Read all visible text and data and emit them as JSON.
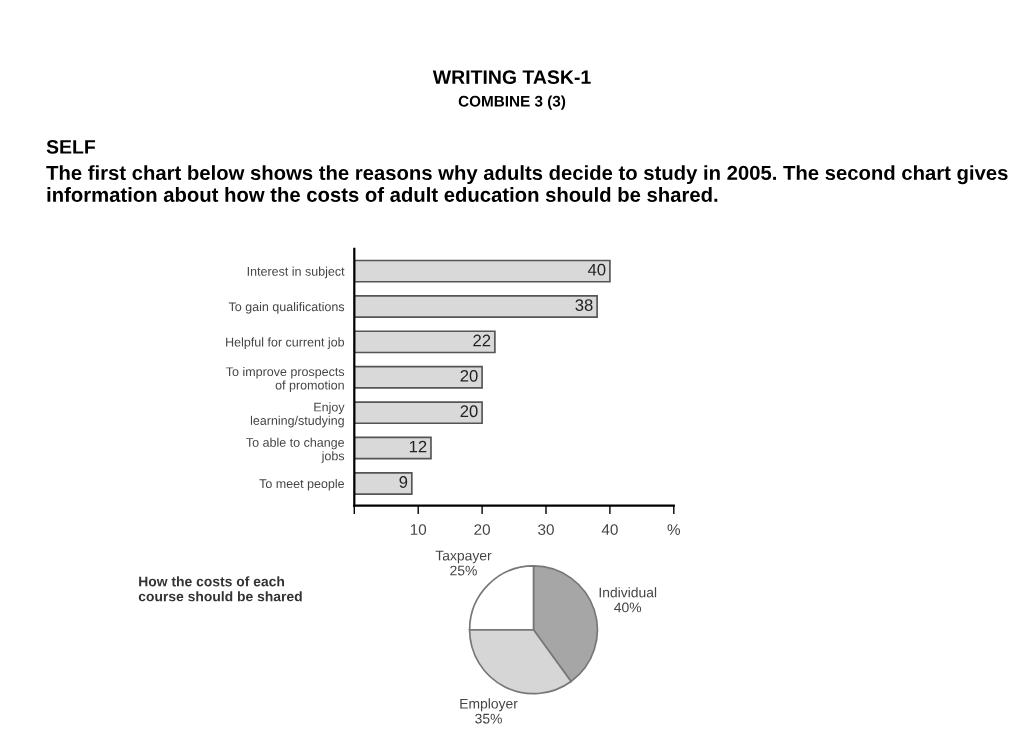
{
  "chart_data": [
    {
      "type": "bar",
      "orientation": "horizontal",
      "annotations": [
        "WRITING TASK-1",
        "COMBINE 3 (3)",
        "SELF",
        "The first chart below shows the reasons why adults decide to study in 2005. The second chart gives information about how the costs of adult education should be shared."
      ],
      "categories": [
        "Interest in subject",
        "To gain qualifications",
        "Helpful for current job",
        "To improve prospects\nof promotion",
        "Enjoy\nlearning/studying",
        "To able to change\njobs",
        "To meet people"
      ],
      "values": [
        40,
        38,
        22,
        20,
        20,
        12,
        9
      ],
      "color": "#d9d9d9",
      "xlim": [
        0,
        50
      ],
      "xticks": [
        {
          "value": 0,
          "label": null
        },
        10,
        20,
        30,
        40,
        {
          "value": 50,
          "label": "%"
        }
      ],
      "data_labels": true,
      "grid": false
    },
    {
      "type": "pie",
      "title": "How the costs of each course should be shared",
      "categories": [
        "Individual",
        "Employer",
        "Taxpayer"
      ],
      "values": [
        40,
        35,
        25
      ],
      "colors": [
        "#a6a6a6",
        "#d6d6d6",
        "#ffffff"
      ],
      "value_labels": [
        "40%",
        "35%",
        "25%"
      ]
    }
  ]
}
